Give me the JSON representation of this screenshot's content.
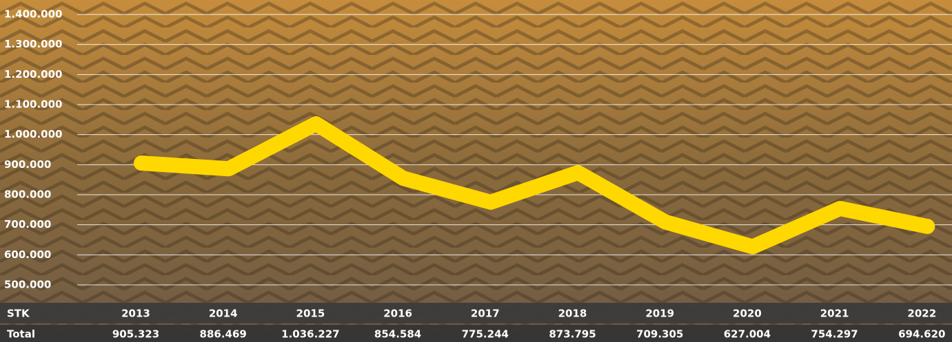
{
  "chart_data": {
    "type": "line",
    "categories": [
      "2013",
      "2014",
      "2015",
      "2016",
      "2017",
      "2018",
      "2019",
      "2020",
      "2021",
      "2022"
    ],
    "series": [
      {
        "name": "Total",
        "color": "#ffd800",
        "values": [
          905323,
          886469,
          1036227,
          854584,
          775244,
          873795,
          709305,
          627004,
          754297,
          694620
        ],
        "value_labels": [
          "905.323",
          "886.469",
          "1.036.227",
          "854.584",
          "775.244",
          "873.795",
          "709.305",
          "627.004",
          "754.297",
          "694.620"
        ]
      }
    ],
    "table_header": "STK",
    "ylim": [
      500000,
      1400000
    ],
    "yticks": [
      {
        "value": 500000,
        "label": "500.000"
      },
      {
        "value": 600000,
        "label": "600.000"
      },
      {
        "value": 700000,
        "label": "700.000"
      },
      {
        "value": 800000,
        "label": "800.000"
      },
      {
        "value": 900000,
        "label": "900.000"
      },
      {
        "value": 1000000,
        "label": "1.000.000"
      },
      {
        "value": 1100000,
        "label": "1.100.000"
      },
      {
        "value": 1200000,
        "label": "1.200.000"
      },
      {
        "value": 1300000,
        "label": "1.300.000"
      },
      {
        "value": 1400000,
        "label": "1.400.000"
      }
    ],
    "grid": true
  }
}
